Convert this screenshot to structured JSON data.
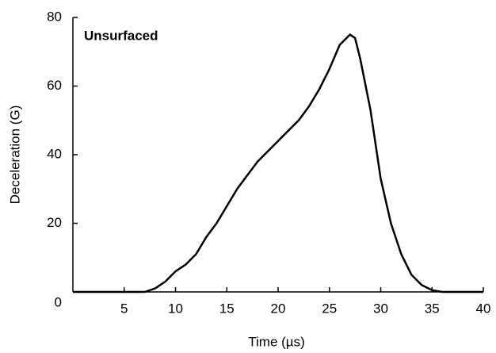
{
  "chart_data": {
    "type": "line",
    "annotation": "Unsurfaced",
    "x_label": "Time (µs)",
    "y_label": "Deceleration (G)",
    "xlim": [
      0,
      40
    ],
    "ylim": [
      0,
      80
    ],
    "xticks": [
      5,
      10,
      15,
      20,
      25,
      30,
      35,
      40
    ],
    "yticks": [
      0,
      20,
      40,
      60,
      80
    ],
    "series": [
      {
        "color": "#000000",
        "x": [
          0,
          7,
          8,
          9,
          10,
          11,
          12,
          13,
          14,
          15,
          16,
          17,
          18,
          19,
          20,
          21,
          22,
          23,
          24,
          25,
          26,
          27,
          27.5,
          28,
          29,
          30,
          31,
          32,
          33,
          34,
          35,
          36,
          40
        ],
        "values": [
          0,
          0,
          1,
          3,
          6,
          8,
          11,
          16,
          20,
          25,
          30,
          34,
          38,
          41,
          44,
          47,
          50,
          54,
          59,
          65,
          72,
          75,
          74,
          68,
          53,
          33,
          20,
          11,
          5,
          2,
          0.5,
          0,
          0
        ]
      }
    ]
  }
}
